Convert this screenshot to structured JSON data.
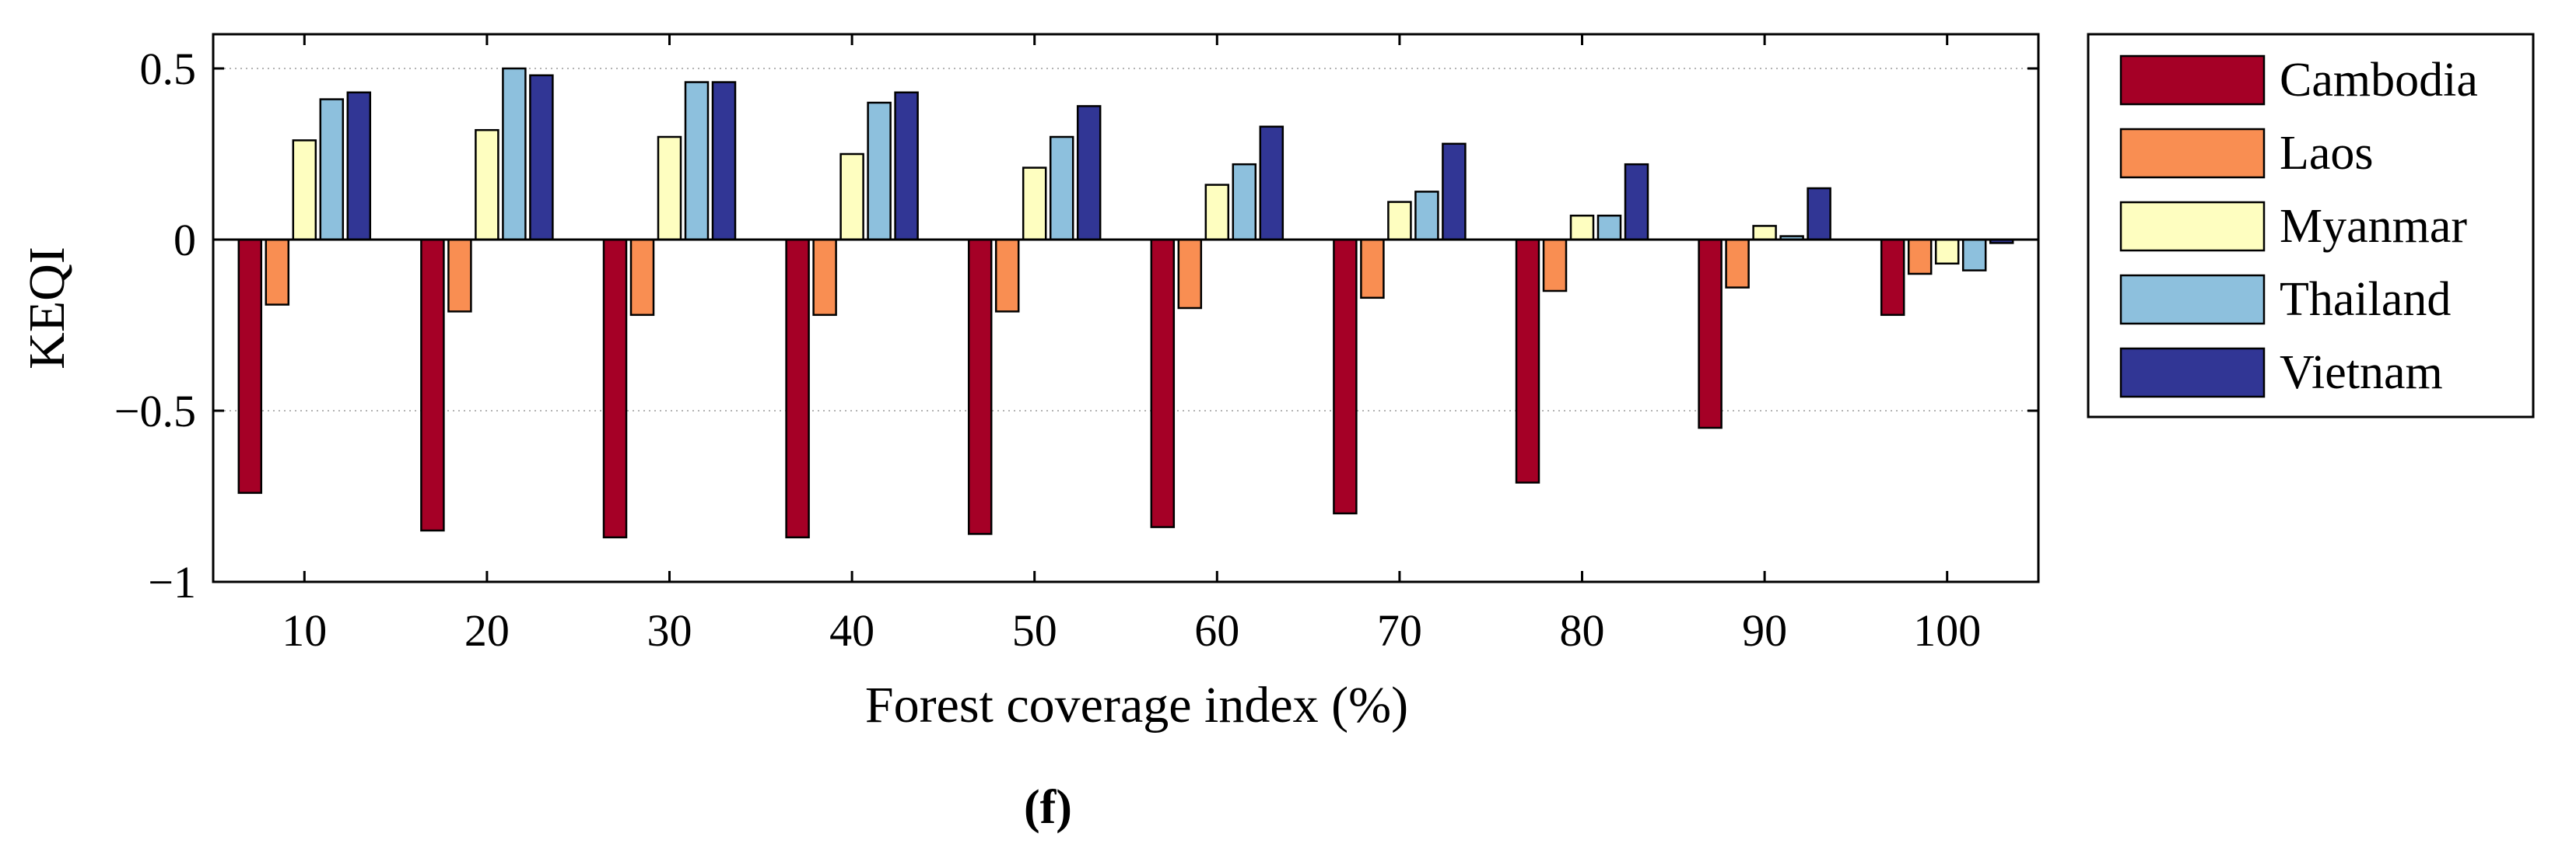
{
  "chart_data": {
    "type": "bar",
    "title": "",
    "xlabel": "Forest coverage index (%)",
    "ylabel": "KEQI",
    "caption": "(f)",
    "categories": [
      "10",
      "20",
      "30",
      "40",
      "50",
      "60",
      "70",
      "80",
      "90",
      "100"
    ],
    "ylim": [
      -1,
      0.6
    ],
    "yticks": [
      0.5,
      0,
      -0.5,
      -1
    ],
    "ytick_labels": [
      "0.5",
      "0",
      "−0.5",
      "−1"
    ],
    "grid": "horizontal dotted",
    "legend_position": "outside-right",
    "series": [
      {
        "name": "Cambodia",
        "color": "#A50026",
        "values": [
          -0.74,
          -0.85,
          -0.87,
          -0.87,
          -0.86,
          -0.84,
          -0.8,
          -0.71,
          -0.55,
          -0.22
        ]
      },
      {
        "name": "Laos",
        "color": "#F98E52",
        "values": [
          -0.19,
          -0.21,
          -0.22,
          -0.22,
          -0.21,
          -0.2,
          -0.17,
          -0.15,
          -0.14,
          -0.1
        ]
      },
      {
        "name": "Myanmar",
        "color": "#FEFEC0",
        "values": [
          0.29,
          0.32,
          0.3,
          0.25,
          0.21,
          0.16,
          0.11,
          0.07,
          0.04,
          -0.07
        ]
      },
      {
        "name": "Thailand",
        "color": "#8DC0DD",
        "values": [
          0.41,
          0.5,
          0.46,
          0.4,
          0.3,
          0.22,
          0.14,
          0.07,
          0.01,
          -0.09
        ]
      },
      {
        "name": "Vietnam",
        "color": "#313695",
        "values": [
          0.43,
          0.48,
          0.46,
          0.43,
          0.39,
          0.33,
          0.28,
          0.22,
          0.15,
          -0.01
        ]
      }
    ]
  }
}
